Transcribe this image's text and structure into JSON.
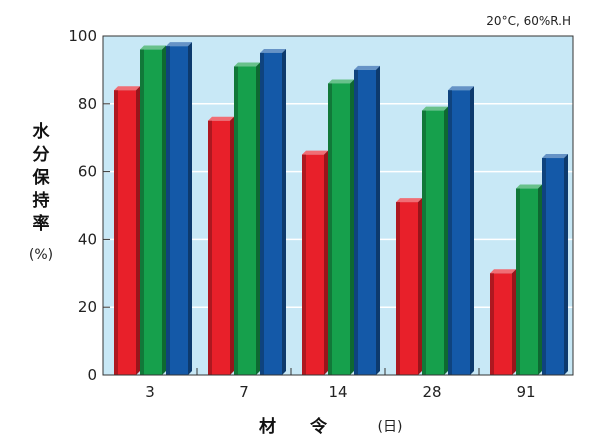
{
  "chart_data": {
    "type": "bar",
    "title": "",
    "annotation": "20°C, 60%R.H",
    "ylabel": "水分保持率",
    "ylabel_unit": "(%)",
    "xlabel": "材 令",
    "xlabel_unit": "(日)",
    "categories": [
      "3",
      "7",
      "14",
      "28",
      "91"
    ],
    "series": [
      {
        "values": [
          84,
          75,
          65,
          51,
          30
        ],
        "color": "#e8202a"
      },
      {
        "values": [
          96,
          91,
          86,
          78,
          55
        ],
        "color": "#16a04c"
      },
      {
        "values": [
          97,
          95,
          90,
          84,
          64
        ],
        "color": "#1459a8"
      }
    ],
    "ylim": [
      0,
      100
    ],
    "yticks": [
      "0",
      "20",
      "40",
      "60",
      "80",
      "100"
    ],
    "grid": true,
    "background_color": "#c8e8f6"
  }
}
